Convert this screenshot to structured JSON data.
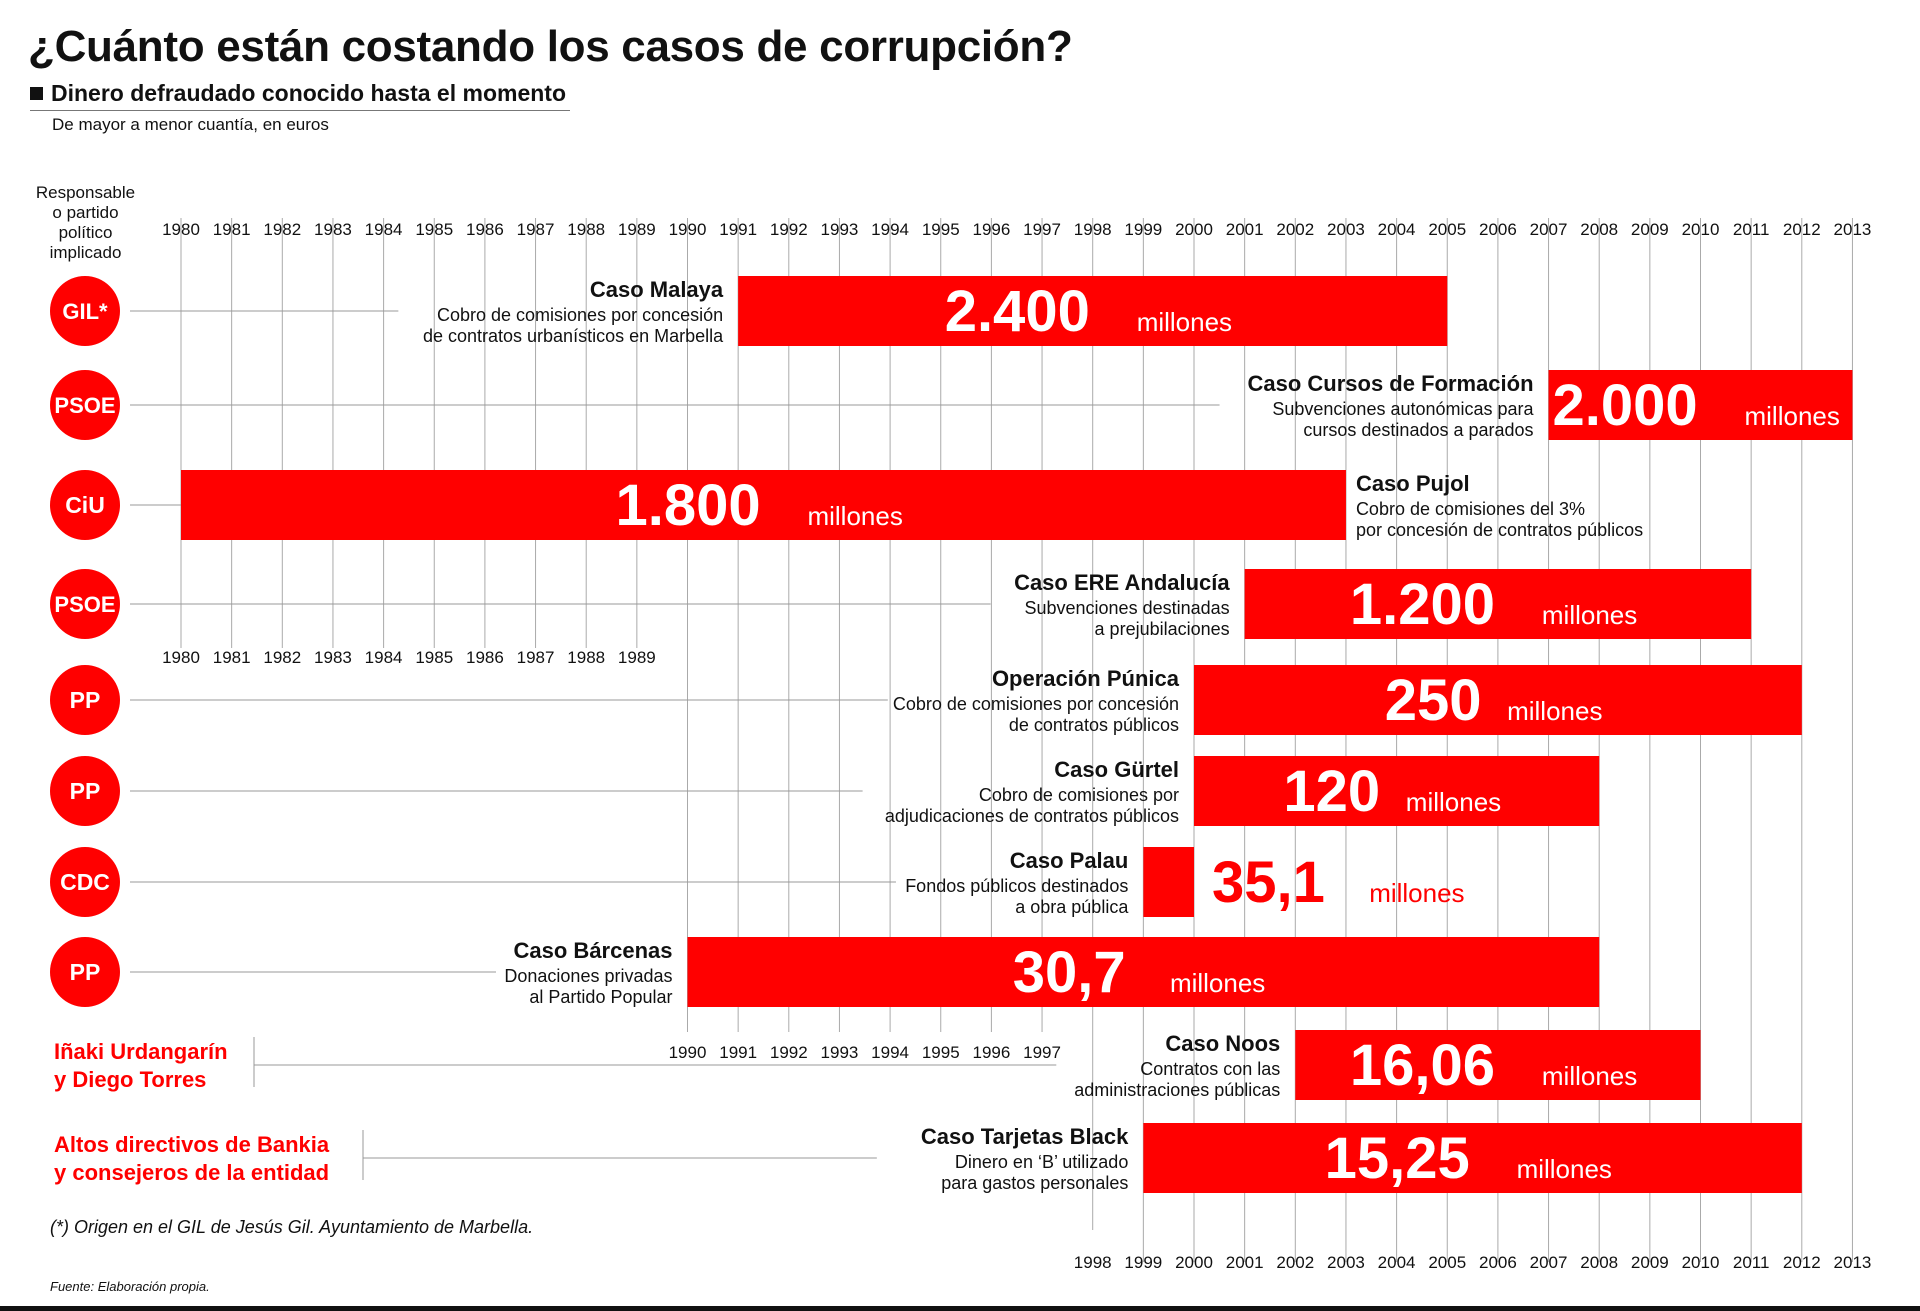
{
  "title": "¿Cuánto están costando los casos de corrupción?",
  "subtitle": "Dinero defraudado conocido hasta el momento",
  "note": "De mayor a menor cuantía, en euros",
  "responsable_header": [
    "Responsable",
    "o partido",
    "político",
    "implicado"
  ],
  "footnote": "(*) Origen en el GIL de Jesús Gil. Ayuntamiento de Marbella.",
  "source": "Fuente: Elaboración propia.",
  "colors": {
    "red": "#ff0000",
    "grid": "#aaaaaa",
    "text": "#111111"
  },
  "chart_data": {
    "type": "bar",
    "subtype": "horizontal-range",
    "x_range": [
      1980,
      2013
    ],
    "x_tick_labels": [
      "1980",
      "1981",
      "1982",
      "1983",
      "1984",
      "1985",
      "1986",
      "1987",
      "1988",
      "1989",
      "1990",
      "1991",
      "1992",
      "1993",
      "1994",
      "1995",
      "1996",
      "1997",
      "1998",
      "1999",
      "2000",
      "2001",
      "2002",
      "2003",
      "2004",
      "2005",
      "2006",
      "2007",
      "2008",
      "2009",
      "2010",
      "2011",
      "2012",
      "2013"
    ],
    "unit_label": "millones",
    "series": [
      {
        "party": "GIL*",
        "name": "Caso Malaya",
        "desc": [
          "Cobro de comisiones por concesión",
          "de contratos urbanísticos en Marbella"
        ],
        "start": 1991,
        "end": 2005,
        "amount": "2.400",
        "value": 2400
      },
      {
        "party": "PSOE",
        "name": "Caso Cursos de Formación",
        "desc": [
          "Subvenciones autonómicas para",
          "cursos destinados a parados"
        ],
        "start": 2007,
        "end": 2013,
        "amount": "2.000",
        "value": 2000
      },
      {
        "party": "CiU",
        "name": "Caso Pujol",
        "desc": [
          "Cobro de comisiones del 3%",
          "por concesión de contratos públicos"
        ],
        "start": 1980,
        "end": 2003,
        "amount": "1.800",
        "value": 1800
      },
      {
        "party": "PSOE",
        "name": "Caso ERE Andalucía",
        "desc": [
          "Subvenciones destinadas",
          "a prejubilaciones"
        ],
        "start": 2001,
        "end": 2011,
        "amount": "1.200",
        "value": 1200
      },
      {
        "party": "PP",
        "name": "Operación Púnica",
        "desc": [
          "Cobro de comisiones por concesión",
          "de contratos públicos"
        ],
        "start": 2000,
        "end": 2012,
        "amount": "250",
        "value": 250
      },
      {
        "party": "PP",
        "name": "Caso Gürtel",
        "desc": [
          "Cobro de comisiones por",
          "adjudicaciones de contratos públicos"
        ],
        "start": 2000,
        "end": 2008,
        "amount": "120",
        "value": 120
      },
      {
        "party": "CDC",
        "name": "Caso Palau",
        "desc": [
          "Fondos públicos destinados",
          "a obra pública"
        ],
        "start": 1999,
        "end": 2000,
        "amount": "35,1",
        "value": 35.1
      },
      {
        "party": "PP",
        "name": "Caso Bárcenas",
        "desc": [
          "Donaciones privadas",
          "al Partido Popular"
        ],
        "start": 1990,
        "end": 2008,
        "amount": "30,7",
        "value": 30.7
      },
      {
        "party": [
          "Iñaki Urdangarín",
          "y Diego Torres"
        ],
        "name": "Caso Noos",
        "desc": [
          "Contratos con las",
          "administraciones públicas"
        ],
        "start": 2002,
        "end": 2010,
        "amount": "16,06",
        "value": 16.06
      },
      {
        "party": [
          "Altos directivos de Bankia",
          "y consejeros de la entidad"
        ],
        "name": "Caso Tarjetas Black",
        "desc": [
          "Dinero en ‘B’ utilizado",
          "para gastos personales"
        ],
        "start": 1999,
        "end": 2012,
        "amount": "15,25",
        "value": 15.25
      }
    ]
  }
}
